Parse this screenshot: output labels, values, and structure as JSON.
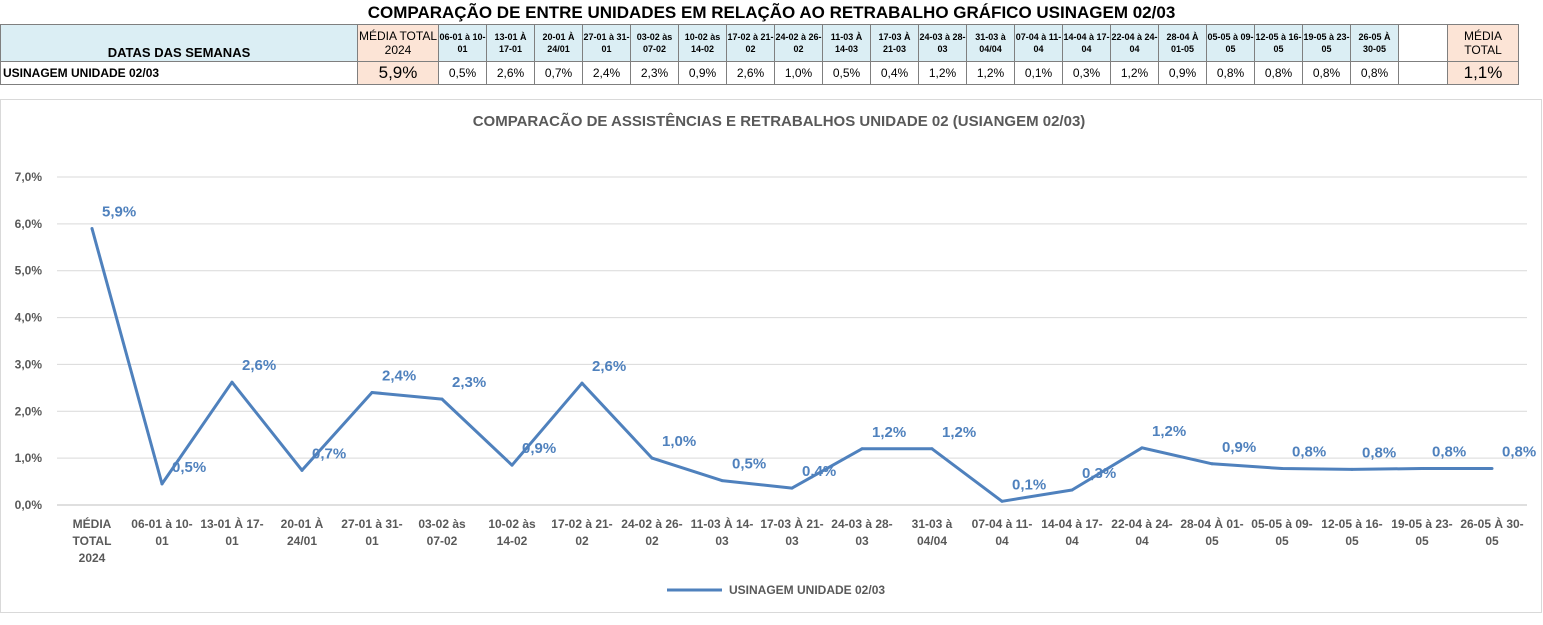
{
  "sheet": {
    "title": "COMPARAÇÃO DE ENTRE UNIDADES EM RELAÇÃO AO RETRABALHO GRÁFICO USINAGEM 02/03",
    "header_label": "DATAS DAS SEMANAS",
    "media_header": "MÉDIA TOTAL 2024",
    "weeks": [
      "06-01 à 10-01",
      "13-01 À 17-01",
      "20-01 À 24/01",
      "27-01 à 31-01",
      "03-02 às 07-02",
      "10-02 às 14-02",
      "17-02 à 21-02",
      "24-02 à 26-02",
      "11-03 À 14-03",
      "17-03 À 21-03",
      "24-03 à 28-03",
      "31-03 à 04/04",
      "07-04 à 11-04",
      "14-04 à 17-04",
      "22-04 à 24-04",
      "28-04 À 01-05",
      "05-05 à 09-05",
      "12-05 à 16-05",
      "19-05 à 23-05",
      "26-05 À 30-05"
    ],
    "total_header": "MÉDIA TOTAL",
    "row_label": "USINAGEM UNIDADE 02/03",
    "media_value": "5,9%",
    "week_values": [
      "0,5%",
      "2,6%",
      "0,7%",
      "2,4%",
      "2,3%",
      "0,9%",
      "2,6%",
      "1,0%",
      "0,5%",
      "0,4%",
      "1,2%",
      "1,2%",
      "0,1%",
      "0,3%",
      "1,2%",
      "0,9%",
      "0,8%",
      "0,8%",
      "0,8%",
      "0,8%"
    ],
    "total_value": "1,1%"
  },
  "chart_data": {
    "type": "line",
    "title": "COMPARACÃO DE ASSISTÊNCIAS E RETRABALHOS UNIDADE 02  (USIANGEM 02/03)",
    "categories": [
      "MÉDIA TOTAL 2024",
      "06-01 à 10-01",
      "13-01 À 17-01",
      "20-01 À 24/01",
      "27-01 à 31-01",
      "03-02 às 07-02",
      "10-02 às 14-02",
      "17-02 à 21-02",
      "24-02 à 26-02",
      "11-03 À 14-03",
      "17-03 À 21-03",
      "24-03 à 28-03",
      "31-03 à 04/04",
      "07-04 à 11-04",
      "14-04 à 17-04",
      "22-04 à 24-04",
      "28-04 À 01-05",
      "05-05 à 09-05",
      "12-05 à 16-05",
      "19-05 à 23-05",
      "26-05 À 30-05"
    ],
    "tick_labels": [
      [
        "MÉDIA",
        "TOTAL",
        "2024"
      ],
      [
        "06-01 à 10-",
        "01"
      ],
      [
        "13-01 À 17-",
        "01"
      ],
      [
        "20-01 À",
        "24/01"
      ],
      [
        "27-01 à 31-",
        "01"
      ],
      [
        "03-02 às",
        "07-02"
      ],
      [
        "10-02 às",
        "14-02"
      ],
      [
        "17-02 à 21-",
        "02"
      ],
      [
        "24-02 à 26-",
        "02"
      ],
      [
        "11-03 À 14-",
        "03"
      ],
      [
        "17-03 À 21-",
        "03"
      ],
      [
        "24-03 à 28-",
        "03"
      ],
      [
        "31-03 à",
        "04/04"
      ],
      [
        "07-04 à 11-",
        "04"
      ],
      [
        "14-04 à 17-",
        "04"
      ],
      [
        "22-04 à 24-",
        "04"
      ],
      [
        "28-04 À 01-",
        "05"
      ],
      [
        "05-05 à 09-",
        "05"
      ],
      [
        "12-05 à 16-",
        "05"
      ],
      [
        "19-05 à 23-",
        "05"
      ],
      [
        "26-05 À 30-",
        "05"
      ]
    ],
    "series": [
      {
        "name": "USINAGEM UNIDADE 02/03",
        "color": "#4f81bd",
        "values": [
          5.9,
          0.45,
          2.62,
          0.74,
          2.4,
          2.26,
          0.85,
          2.6,
          1.0,
          0.52,
          0.36,
          1.2,
          1.2,
          0.08,
          0.32,
          1.22,
          0.88,
          0.78,
          0.76,
          0.78,
          0.78
        ],
        "labels": [
          "5,9%",
          "0,5%",
          "2,6%",
          "0,7%",
          "2,4%",
          "2,3%",
          "0,9%",
          "2,6%",
          "1,0%",
          "0,5%",
          "0,4%",
          "1,2%",
          "1,2%",
          "0,1%",
          "0,3%",
          "1,2%",
          "0,9%",
          "0,8%",
          "0,8%",
          "0,8%",
          "0,8%"
        ]
      }
    ],
    "y_ticks": [
      "0,0%",
      "1,0%",
      "2,0%",
      "3,0%",
      "4,0%",
      "5,0%",
      "6,0%",
      "7,0%"
    ],
    "ylim": [
      0,
      7
    ],
    "grid": true,
    "legend": "bottom"
  }
}
